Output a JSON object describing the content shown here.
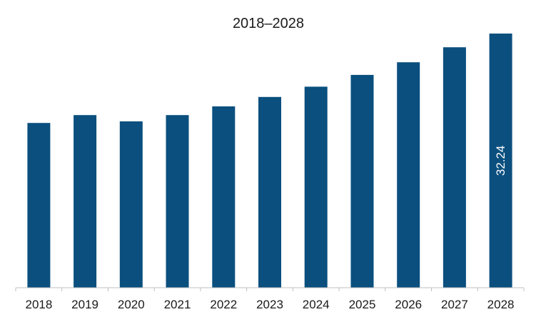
{
  "chart_data": {
    "type": "bar",
    "title": "2018–2028",
    "xlabel": "",
    "ylabel": "",
    "categories": [
      "2018",
      "2019",
      "2020",
      "2021",
      "2022",
      "2023",
      "2024",
      "2025",
      "2026",
      "2027",
      "2028"
    ],
    "values": [
      20.9,
      21.9,
      21.1,
      21.9,
      23.0,
      24.2,
      25.5,
      27.0,
      28.6,
      30.5,
      32.24
    ],
    "data_labels": [
      {
        "index": 10,
        "text": "32.24",
        "orientation": "vertical"
      }
    ],
    "ylim": [
      0,
      32.24
    ],
    "y_axis_visible": false,
    "grid": false,
    "legend": "none",
    "colors": {
      "bar": "#0a4f7e",
      "axis": "#bfbfbf",
      "text": "#1a1a1a",
      "label_text": "#ffffff"
    }
  }
}
